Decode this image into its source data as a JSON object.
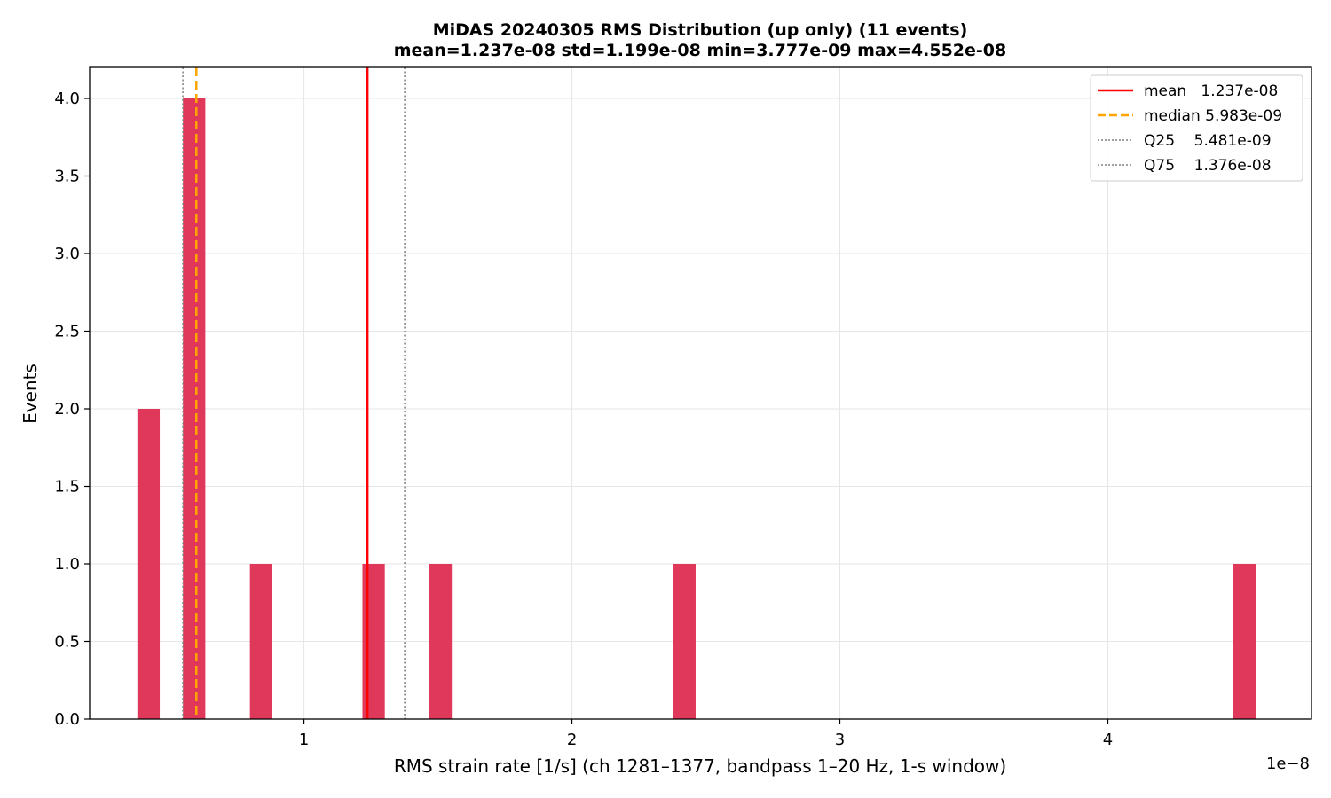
{
  "chart_data": {
    "type": "bar",
    "title": "MiDAS 20240305  RMS Distribution  (up only)  (11 events)",
    "subtitle": "mean=1.237e-08  std=1.199e-08  min=3.777e-09  max=4.552e-08",
    "xlabel": "RMS strain rate [1/s]  (ch 1281–1377, bandpass 1–20 Hz, 1-s window)",
    "ylabel": "Events",
    "x_offset_label": "1e−8",
    "x_scale": 1e-08,
    "xlim": [
      0.2,
      4.76
    ],
    "ylim": [
      0,
      4.2
    ],
    "x_ticks": [
      1,
      2,
      3,
      4
    ],
    "x_tick_labels": [
      "1",
      "2",
      "3",
      "4"
    ],
    "y_ticks": [
      0,
      0.5,
      1,
      1.5,
      2,
      2.5,
      3,
      3.5,
      4
    ],
    "y_tick_labels": [
      "0.0",
      "0.5",
      "1.0",
      "1.5",
      "2.0",
      "2.5",
      "3.0",
      "3.5",
      "4.0"
    ],
    "grid": true,
    "bar_color": "#e0385a",
    "bin_width": 0.0835,
    "bins": [
      {
        "x": 0.42,
        "count": 2
      },
      {
        "x": 0.59,
        "count": 4
      },
      {
        "x": 0.84,
        "count": 1
      },
      {
        "x": 1.26,
        "count": 1
      },
      {
        "x": 1.51,
        "count": 1
      },
      {
        "x": 2.42,
        "count": 1
      },
      {
        "x": 4.51,
        "count": 1
      }
    ],
    "reference_lines": [
      {
        "name": "mean",
        "value": 1.237,
        "label": "mean   1.237e-08",
        "color": "#ff0000",
        "style": "solid"
      },
      {
        "name": "median",
        "value": 0.5983,
        "label": "median 5.983e-09",
        "color": "#ffa500",
        "style": "dashed"
      },
      {
        "name": "q25",
        "value": 0.5481,
        "label": "Q25    5.481e-09",
        "color": "#808080",
        "style": "dotted"
      },
      {
        "name": "q75",
        "value": 1.376,
        "label": "Q75    1.376e-08",
        "color": "#808080",
        "style": "dotted"
      }
    ],
    "legend_position": "top-right"
  }
}
